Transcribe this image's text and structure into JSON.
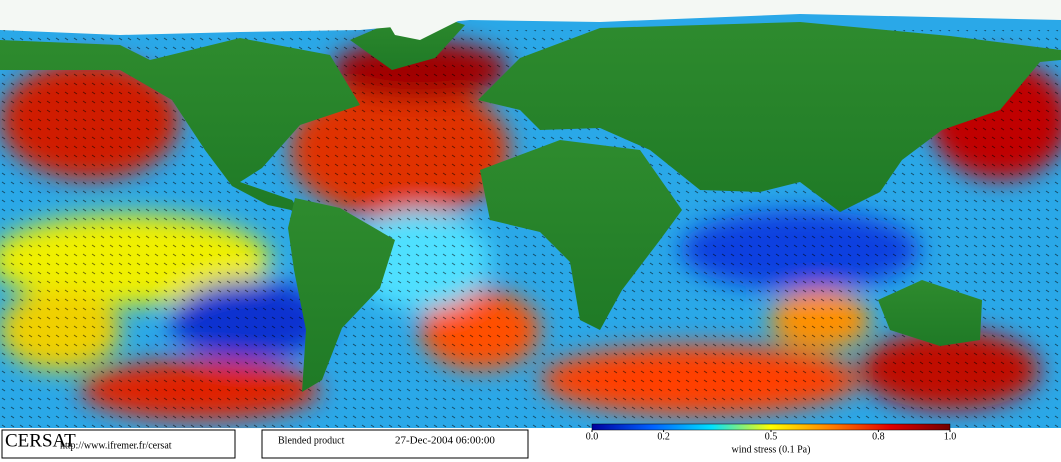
{
  "footer": {
    "logo": "CERSAT",
    "url": "http://www.ifremer.fr/cersat",
    "product": "Blended product",
    "datetime": "27-Dec-2004 06:00:00"
  },
  "colorbar": {
    "range": [
      0,
      1
    ],
    "colors": [
      "#0000a0",
      "#0060ff",
      "#00e0ff",
      "#ffff00",
      "#ff8000",
      "#e00000",
      "#700000"
    ],
    "ticks": [
      {
        "value": 0,
        "label": "0.0"
      },
      {
        "value": 0.2,
        "label": "0.2"
      },
      {
        "value": 0.5,
        "label": "0.5"
      },
      {
        "value": 0.8,
        "label": "0.8"
      },
      {
        "value": 1,
        "label": "1.0"
      }
    ],
    "label": "wind stress (0.1 Pa)"
  }
}
